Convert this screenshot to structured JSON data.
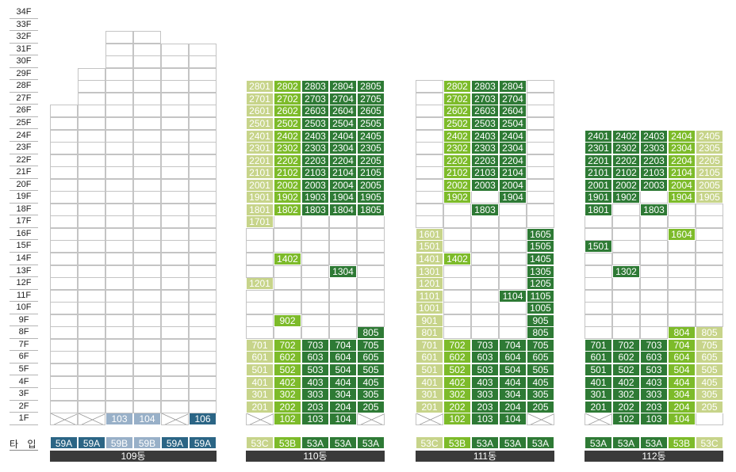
{
  "floors": [
    "34F",
    "33F",
    "32F",
    "31F",
    "30F",
    "29F",
    "28F",
    "27F",
    "26F",
    "25F",
    "24F",
    "23F",
    "22F",
    "21F",
    "20F",
    "19F",
    "18F",
    "17F",
    "16F",
    "15F",
    "14F",
    "13F",
    "12F",
    "11F",
    "10F",
    "9F",
    "8F",
    "7F",
    "6F",
    "5F",
    "4F",
    "3F",
    "2F",
    "1F"
  ],
  "type_row_label": "타 입",
  "colors": {
    "dark": "#2e7a35",
    "mid": "#7dbb2a",
    "light": "#c7d48a",
    "blue": "#2b6585",
    "pale": "#98b0c8",
    "bar": "#3a3a3a"
  },
  "buildings": [
    {
      "name": "109동",
      "types": [
        {
          "label": "59A",
          "color": "blue"
        },
        {
          "label": "59A",
          "color": "blue"
        },
        {
          "label": "59B",
          "color": "pale"
        },
        {
          "label": "59B",
          "color": "pale"
        },
        {
          "label": "59A",
          "color": "blue"
        },
        {
          "label": "59A",
          "color": "blue"
        }
      ],
      "highlighted_units": [
        {
          "label": "103",
          "color": "pale"
        },
        {
          "label": "104",
          "color": "pale"
        },
        {
          "label": "106",
          "color": "blue"
        }
      ]
    },
    {
      "name": "110동",
      "types": [
        {
          "label": "53C",
          "color": "light"
        },
        {
          "label": "53B",
          "color": "mid"
        },
        {
          "label": "53A",
          "color": "dark"
        },
        {
          "label": "53A",
          "color": "dark"
        },
        {
          "label": "53A",
          "color": "dark"
        }
      ],
      "highlighted_units": [
        "2801",
        "2802",
        "2803",
        "2804",
        "2805",
        "2701",
        "2702",
        "2703",
        "2704",
        "2705",
        "2601",
        "2602",
        "2603",
        "2604",
        "2605",
        "2501",
        "2502",
        "2503",
        "2504",
        "2505",
        "2401",
        "2402",
        "2403",
        "2404",
        "2405",
        "2301",
        "2302",
        "2303",
        "2304",
        "2305",
        "2201",
        "2202",
        "2203",
        "2204",
        "2205",
        "2101",
        "2102",
        "2103",
        "2104",
        "2105",
        "2001",
        "2002",
        "2003",
        "2004",
        "2005",
        "1901",
        "1902",
        "1903",
        "1904",
        "1905",
        "1801",
        "1802",
        "1803",
        "1804",
        "1805",
        "1701",
        "1402",
        "1304",
        "1201",
        "902",
        "805",
        "701",
        "702",
        "703",
        "704",
        "705",
        "601",
        "602",
        "603",
        "604",
        "605",
        "501",
        "502",
        "503",
        "504",
        "505",
        "401",
        "402",
        "403",
        "404",
        "405",
        "301",
        "302",
        "303",
        "304",
        "305",
        "201",
        "202",
        "203",
        "204",
        "205",
        "102",
        "103",
        "104"
      ]
    },
    {
      "name": "111동",
      "types": [
        {
          "label": "53C",
          "color": "light"
        },
        {
          "label": "53B",
          "color": "mid"
        },
        {
          "label": "53A",
          "color": "dark"
        },
        {
          "label": "53A",
          "color": "dark"
        },
        {
          "label": "53A",
          "color": "dark"
        }
      ],
      "highlighted_units": [
        "2802",
        "2803",
        "2804",
        "2702",
        "2703",
        "2704",
        "2602",
        "2603",
        "2604",
        "2502",
        "2503",
        "2504",
        "2402",
        "2403",
        "2404",
        "2302",
        "2303",
        "2304",
        "2202",
        "2203",
        "2204",
        "2102",
        "2103",
        "2104",
        "2002",
        "2003",
        "2004",
        "1902",
        "1904",
        "1803",
        "1601",
        "1605",
        "1501",
        "1505",
        "1401",
        "1402",
        "1405",
        "1301",
        "1305",
        "1201",
        "1205",
        "1101",
        "1104",
        "1105",
        "1001",
        "1005",
        "901",
        "905",
        "801",
        "805",
        "701",
        "702",
        "703",
        "704",
        "705",
        "601",
        "602",
        "603",
        "604",
        "605",
        "501",
        "502",
        "503",
        "504",
        "505",
        "401",
        "402",
        "403",
        "404",
        "405",
        "301",
        "302",
        "303",
        "304",
        "305",
        "201",
        "202",
        "203",
        "204",
        "205",
        "102",
        "103",
        "104"
      ]
    },
    {
      "name": "112동",
      "types": [
        {
          "label": "53A",
          "color": "dark"
        },
        {
          "label": "53A",
          "color": "dark"
        },
        {
          "label": "53A",
          "color": "dark"
        },
        {
          "label": "53B",
          "color": "mid"
        },
        {
          "label": "53C",
          "color": "light"
        }
      ],
      "highlighted_units": [
        "2401",
        "2402",
        "2403",
        "2404",
        "2405",
        "2301",
        "2302",
        "2303",
        "2304",
        "2305",
        "2201",
        "2202",
        "2203",
        "2204",
        "2205",
        "2101",
        "2102",
        "2103",
        "2104",
        "2105",
        "2001",
        "2002",
        "2003",
        "2004",
        "2005",
        "1901",
        "1902",
        "1904",
        "1905",
        "1801",
        "1803",
        "1604",
        "1501",
        "1302",
        "804",
        "805",
        "701",
        "702",
        "703",
        "704",
        "705",
        "601",
        "602",
        "603",
        "604",
        "605",
        "501",
        "502",
        "503",
        "504",
        "505",
        "401",
        "402",
        "403",
        "404",
        "405",
        "301",
        "302",
        "303",
        "304",
        "305",
        "201",
        "202",
        "203",
        "204",
        "205",
        "102",
        "103",
        "104"
      ]
    }
  ]
}
